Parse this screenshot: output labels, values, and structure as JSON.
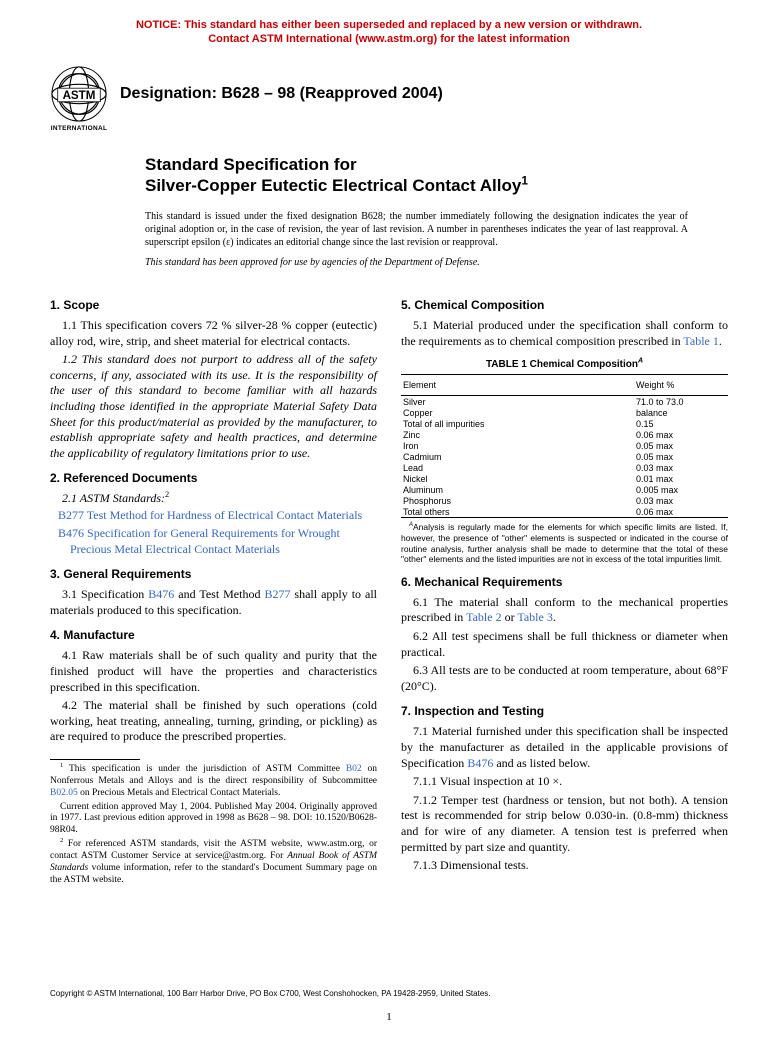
{
  "notice": {
    "line1": "NOTICE: This standard has either been superseded and replaced by a new version or withdrawn.",
    "line2": "Contact ASTM International (www.astm.org) for the latest information"
  },
  "logo": {
    "intl": "INTERNATIONAL"
  },
  "designation": "Designation: B628 – 98 (Reapproved 2004)",
  "title": {
    "line1": "Standard Specification for",
    "line2": "Silver-Copper Eutectic Electrical Contact Alloy",
    "sup": "1"
  },
  "issuance": "This standard is issued under the fixed designation B628; the number immediately following the designation indicates the year of original adoption or, in the case of revision, the year of last revision. A number in parentheses indicates the year of last reapproval. A superscript epsilon (ε) indicates an editorial change since the last revision or reapproval.",
  "dod": "This standard has been approved for use by agencies of the Department of Defense.",
  "sections": {
    "s1": {
      "head": "1. Scope",
      "p1": "1.1 This specification covers 72 % silver-28 % copper (eutectic) alloy rod, wire, strip, and sheet material for electrical contacts.",
      "p2": "1.2 This standard does not purport to address all of the safety concerns, if any, associated with its use. It is the responsibility of the user of this standard to become familiar with all hazards including those identified in the appropriate Material Safety Data Sheet for this product/material as provided by the manufacturer, to establish appropriate safety and health practices, and determine the applicability of regulatory limitations prior to use."
    },
    "s2": {
      "head": "2. Referenced Documents",
      "sub": "2.1 ASTM Standards:",
      "sup": "2",
      "r1a": "B277",
      "r1b": " Test Method for Hardness of Electrical Contact Materials",
      "r2a": "B476",
      "r2b": " Specification for General Requirements for Wrought Precious Metal Electrical Contact Materials"
    },
    "s3": {
      "head": "3. General Requirements",
      "p1a": "3.1 Specification ",
      "p1l1": "B476",
      "p1b": " and Test Method ",
      "p1l2": "B277",
      "p1c": " shall apply to all materials produced to this specification."
    },
    "s4": {
      "head": "4. Manufacture",
      "p1": "4.1 Raw materials shall be of such quality and purity that the finished product will have the properties and characteristics prescribed in this specification.",
      "p2": "4.2 The material shall be finished by such operations (cold working, heat treating, annealing, turning, grinding, or pickling) as are required to produce the prescribed properties."
    },
    "s5": {
      "head": "5. Chemical Composition",
      "p1a": "5.1 Material produced under the specification shall conform to the requirements as to chemical composition prescribed in ",
      "p1l": "Table 1",
      "p1b": "."
    },
    "s6": {
      "head": "6. Mechanical Requirements",
      "p1a": "6.1 The material shall conform to the mechanical properties prescribed in ",
      "p1l1": "Table 2",
      "p1b": " or ",
      "p1l2": "Table 3",
      "p1c": ".",
      "p2": "6.2 All test specimens shall be full thickness or diameter when practical.",
      "p3": "6.3 All tests are to be conducted at room temperature, about 68°F (20°C)."
    },
    "s7": {
      "head": "7. Inspection and Testing",
      "p1a": "7.1 Material furnished under this specification shall be inspected by the manufacturer as detailed in the applicable provisions of Specification ",
      "p1l": "B476",
      "p1b": " and as listed below.",
      "p2": "7.1.1 Visual inspection at 10 ×.",
      "p3": "7.1.2 Temper test (hardness or tension, but not both). A tension test is recommended for strip below 0.030-in. (0.8-mm) thickness and for wire of any diameter. A tension test is preferred when permitted by part size and quantity.",
      "p4": "7.1.3 Dimensional tests."
    }
  },
  "table1": {
    "caption": "TABLE 1  Chemical Composition",
    "capsup": "A",
    "headers": [
      "Element",
      "Weight %"
    ],
    "rows": [
      [
        "Silver",
        "71.0 to 73.0"
      ],
      [
        "Copper",
        "balance"
      ],
      [
        "Total of all impurities",
        "0.15"
      ],
      [
        "Zinc",
        "0.06 max"
      ],
      [
        "Iron",
        "0.05 max"
      ],
      [
        "Cadmium",
        "0.05 max"
      ],
      [
        "Lead",
        "0.03 max"
      ],
      [
        "Nickel",
        "0.01 max"
      ],
      [
        "Aluminum",
        "0.005 max"
      ],
      [
        "Phosphorus",
        "0.03 max"
      ],
      [
        "Total others",
        "0.06 max"
      ]
    ],
    "noteSup": "A",
    "note": "Analysis is regularly made for the elements for which specific limits are listed. If, however, the presence of \"other\" elements is suspected or indicated in the course of routine analysis, further analysis shall be made to determine that the total of these \"other\" elements and the listed impurities are not in excess of the total impurities limit."
  },
  "footnotes": {
    "f1sup": "1",
    "f1a": " This specification is under the jurisdiction of ASTM Committee ",
    "f1l1": "B02",
    "f1b": " on Nonferrous Metals and Alloys and is the direct responsibility of Subcommittee ",
    "f1l2": "B02.05",
    "f1c": " on Precious Metals and Electrical Contact Materials.",
    "f1p2": "Current edition approved May 1, 2004. Published May 2004. Originally approved in 1977. Last previous edition approved in 1998 as B628 – 98. DOI: 10.1520/B0628-98R04.",
    "f2sup": "2",
    "f2a": " For referenced ASTM standards, visit the ASTM website, www.astm.org, or contact ASTM Customer Service at service@astm.org. For ",
    "f2i": "Annual Book of ASTM Standards",
    "f2b": " volume information, refer to the standard's Document Summary page on the ASTM website."
  },
  "copyright": "Copyright © ASTM International, 100 Barr Harbor Drive, PO Box C700, West Conshohocken, PA 19428-2959, United States.",
  "pagenum": "1",
  "colors": {
    "notice": "#cc0000",
    "link": "#3366cc",
    "text": "#000000"
  }
}
